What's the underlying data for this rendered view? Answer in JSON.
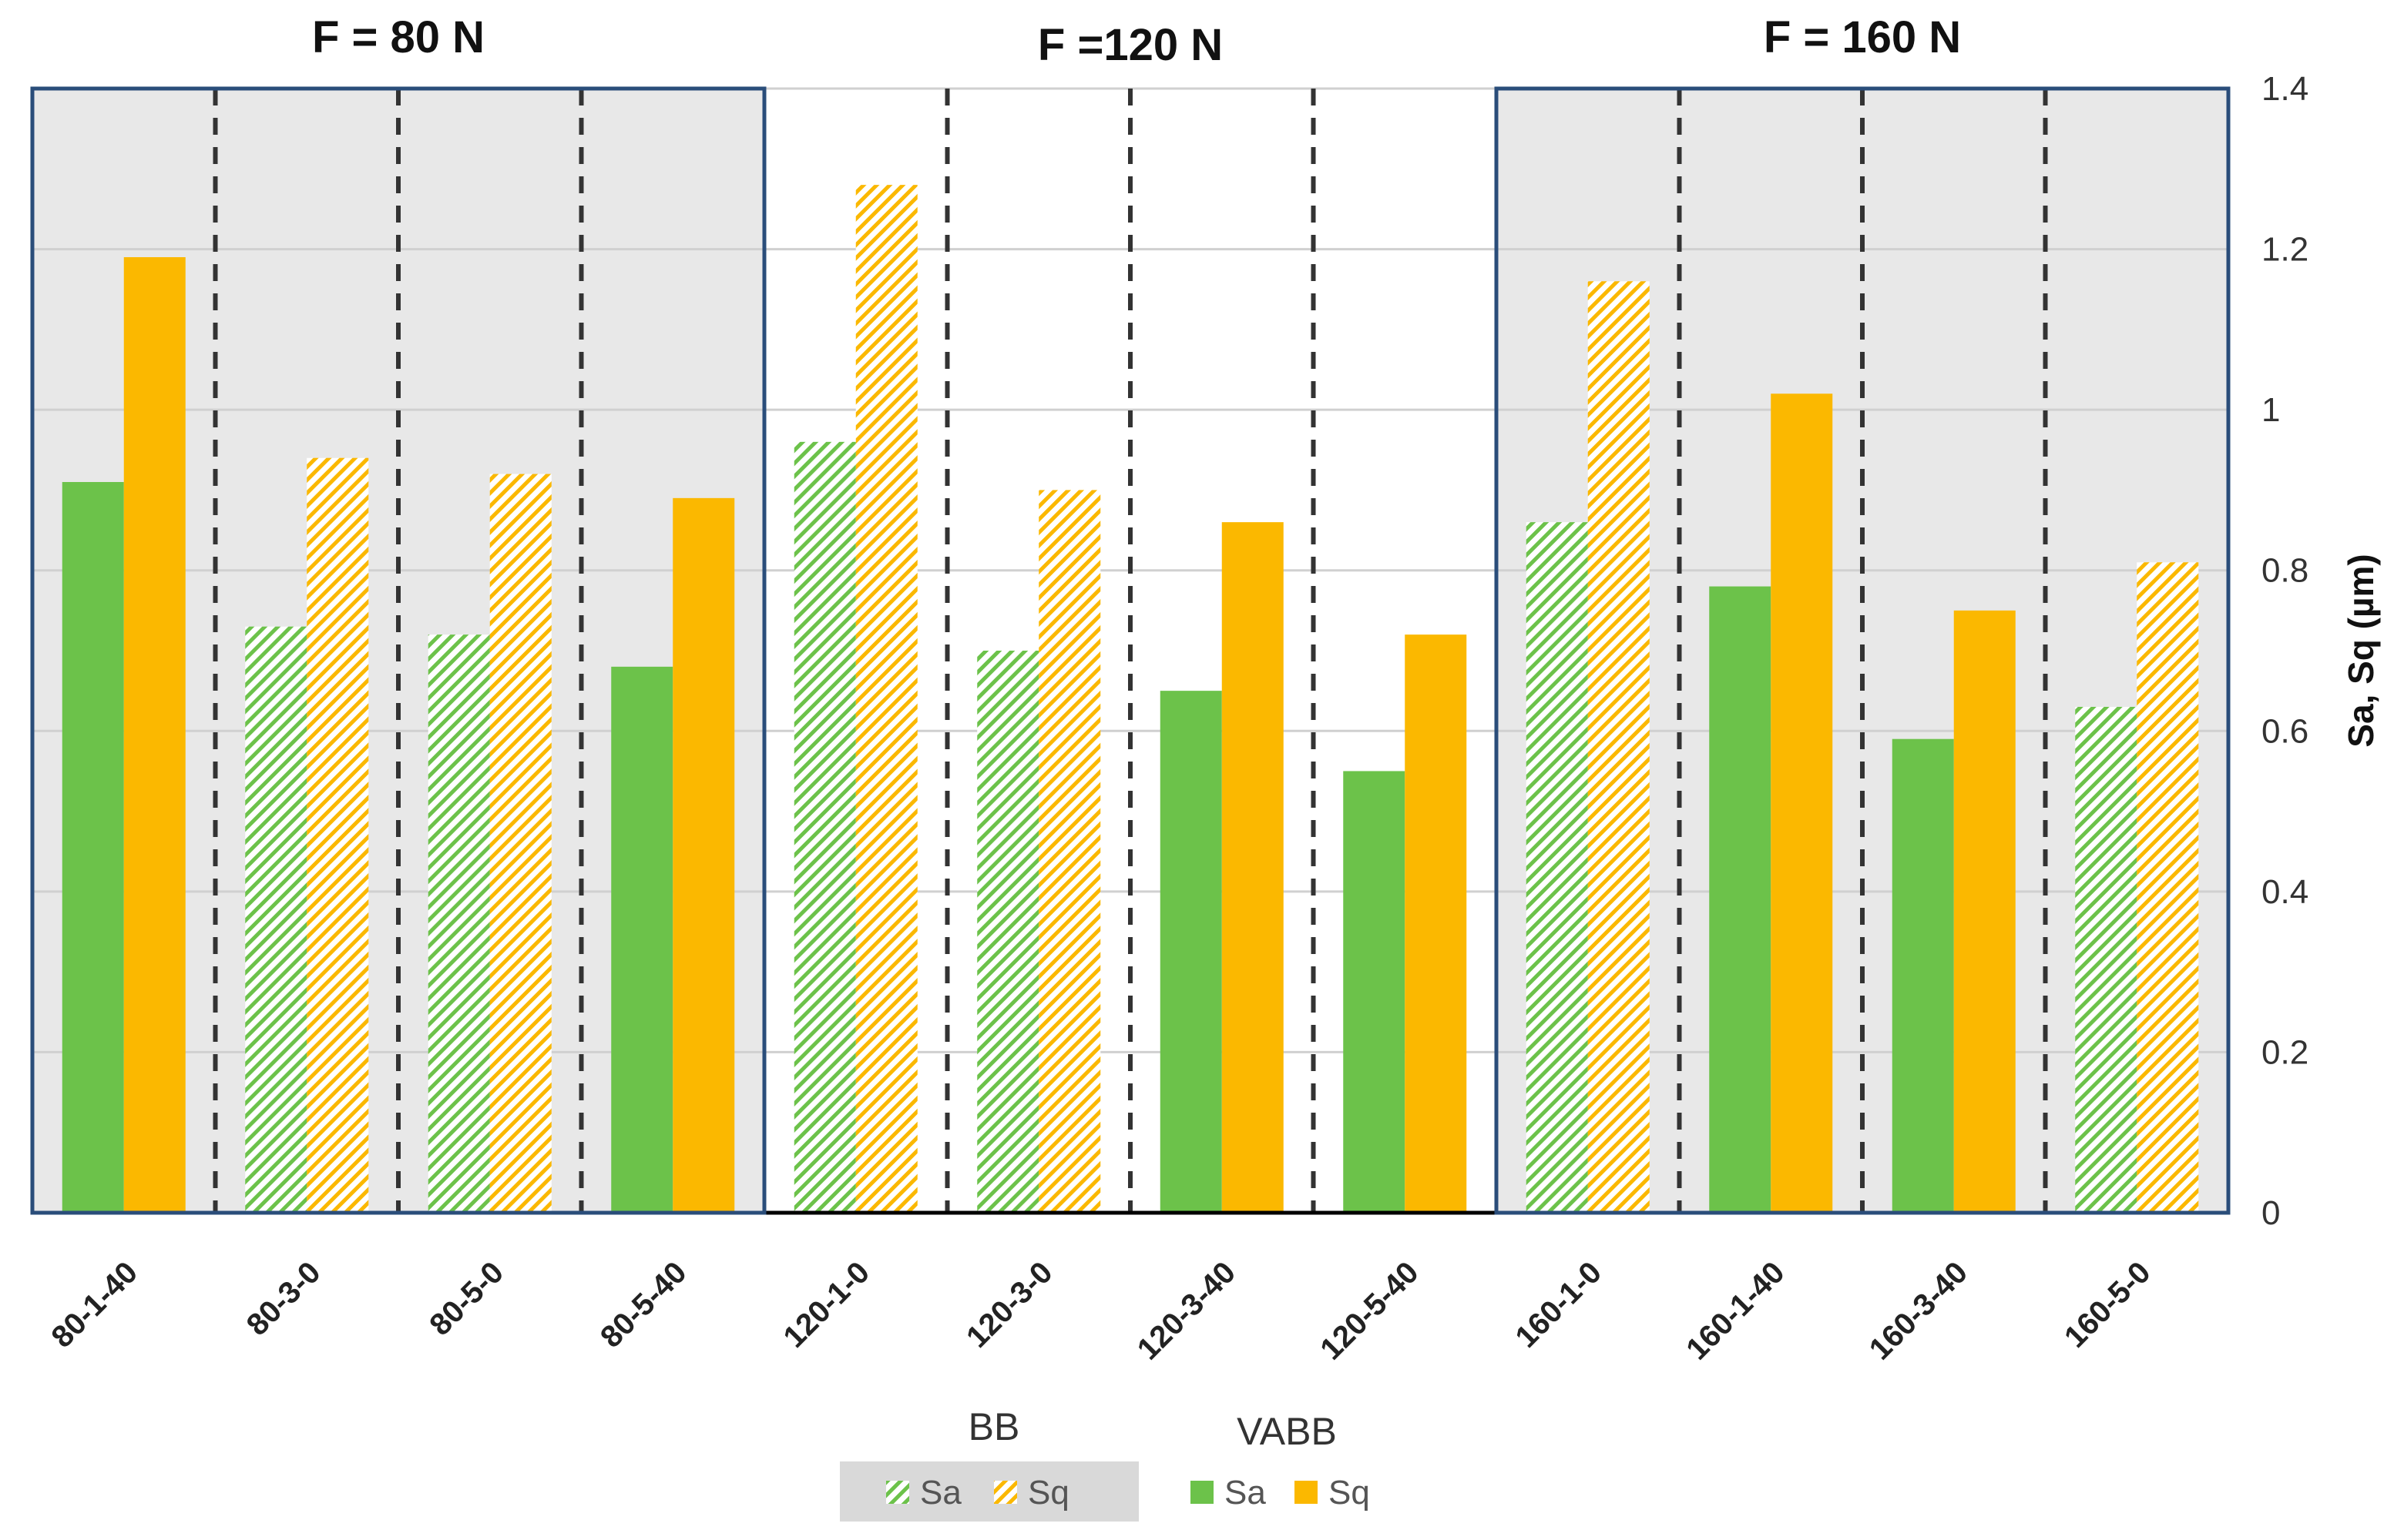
{
  "chart_data": {
    "type": "bar",
    "ylabel": "Sa, Sq (µm)",
    "ylim": [
      0,
      1.4
    ],
    "yticks": [
      "0",
      "0.2",
      "0.4",
      "0.6",
      "0.8",
      "1",
      "1.2",
      "1.4"
    ],
    "grid": true,
    "y_axis_side": "right",
    "categories": [
      "80-1-40",
      "80-3-0",
      "80-5-0",
      "80-5-40",
      "120-1-0",
      "120-3-0",
      "120-3-40",
      "120-5-40",
      "160-1-0",
      "160-1-40",
      "160-3-40",
      "160-5-0"
    ],
    "method": [
      "VABB",
      "BB",
      "BB",
      "VABB",
      "BB",
      "BB",
      "VABB",
      "VABB",
      "BB",
      "VABB",
      "VABB",
      "BB"
    ],
    "series": [
      {
        "name": "Sa",
        "values": [
          0.91,
          0.73,
          0.72,
          0.68,
          0.96,
          0.7,
          0.65,
          0.55,
          0.86,
          0.78,
          0.59,
          0.63
        ],
        "color": "#6cc24a"
      },
      {
        "name": "Sq",
        "values": [
          1.19,
          0.94,
          0.92,
          0.89,
          1.28,
          0.9,
          0.86,
          0.72,
          1.16,
          1.02,
          0.75,
          0.81
        ],
        "color": "#fbb800"
      }
    ],
    "groups": [
      {
        "title": "F = 80 N",
        "categories": [
          "80-1-40",
          "80-3-0",
          "80-5-0",
          "80-5-40"
        ],
        "shaded": true
      },
      {
        "title": "F =120 N",
        "categories": [
          "120-1-0",
          "120-3-0",
          "120-3-40",
          "120-5-40"
        ],
        "shaded": false
      },
      {
        "title": "F = 160 N",
        "categories": [
          "160-1-0",
          "160-1-40",
          "160-3-40",
          "160-5-0"
        ],
        "shaded": true
      }
    ],
    "legend": {
      "placement": "bottom",
      "groups": [
        {
          "title": "BB",
          "pattern": "hatched",
          "items": [
            "Sa",
            "Sq"
          ]
        },
        {
          "title": "VABB",
          "pattern": "solid",
          "items": [
            "Sa",
            "Sq"
          ]
        }
      ]
    }
  }
}
